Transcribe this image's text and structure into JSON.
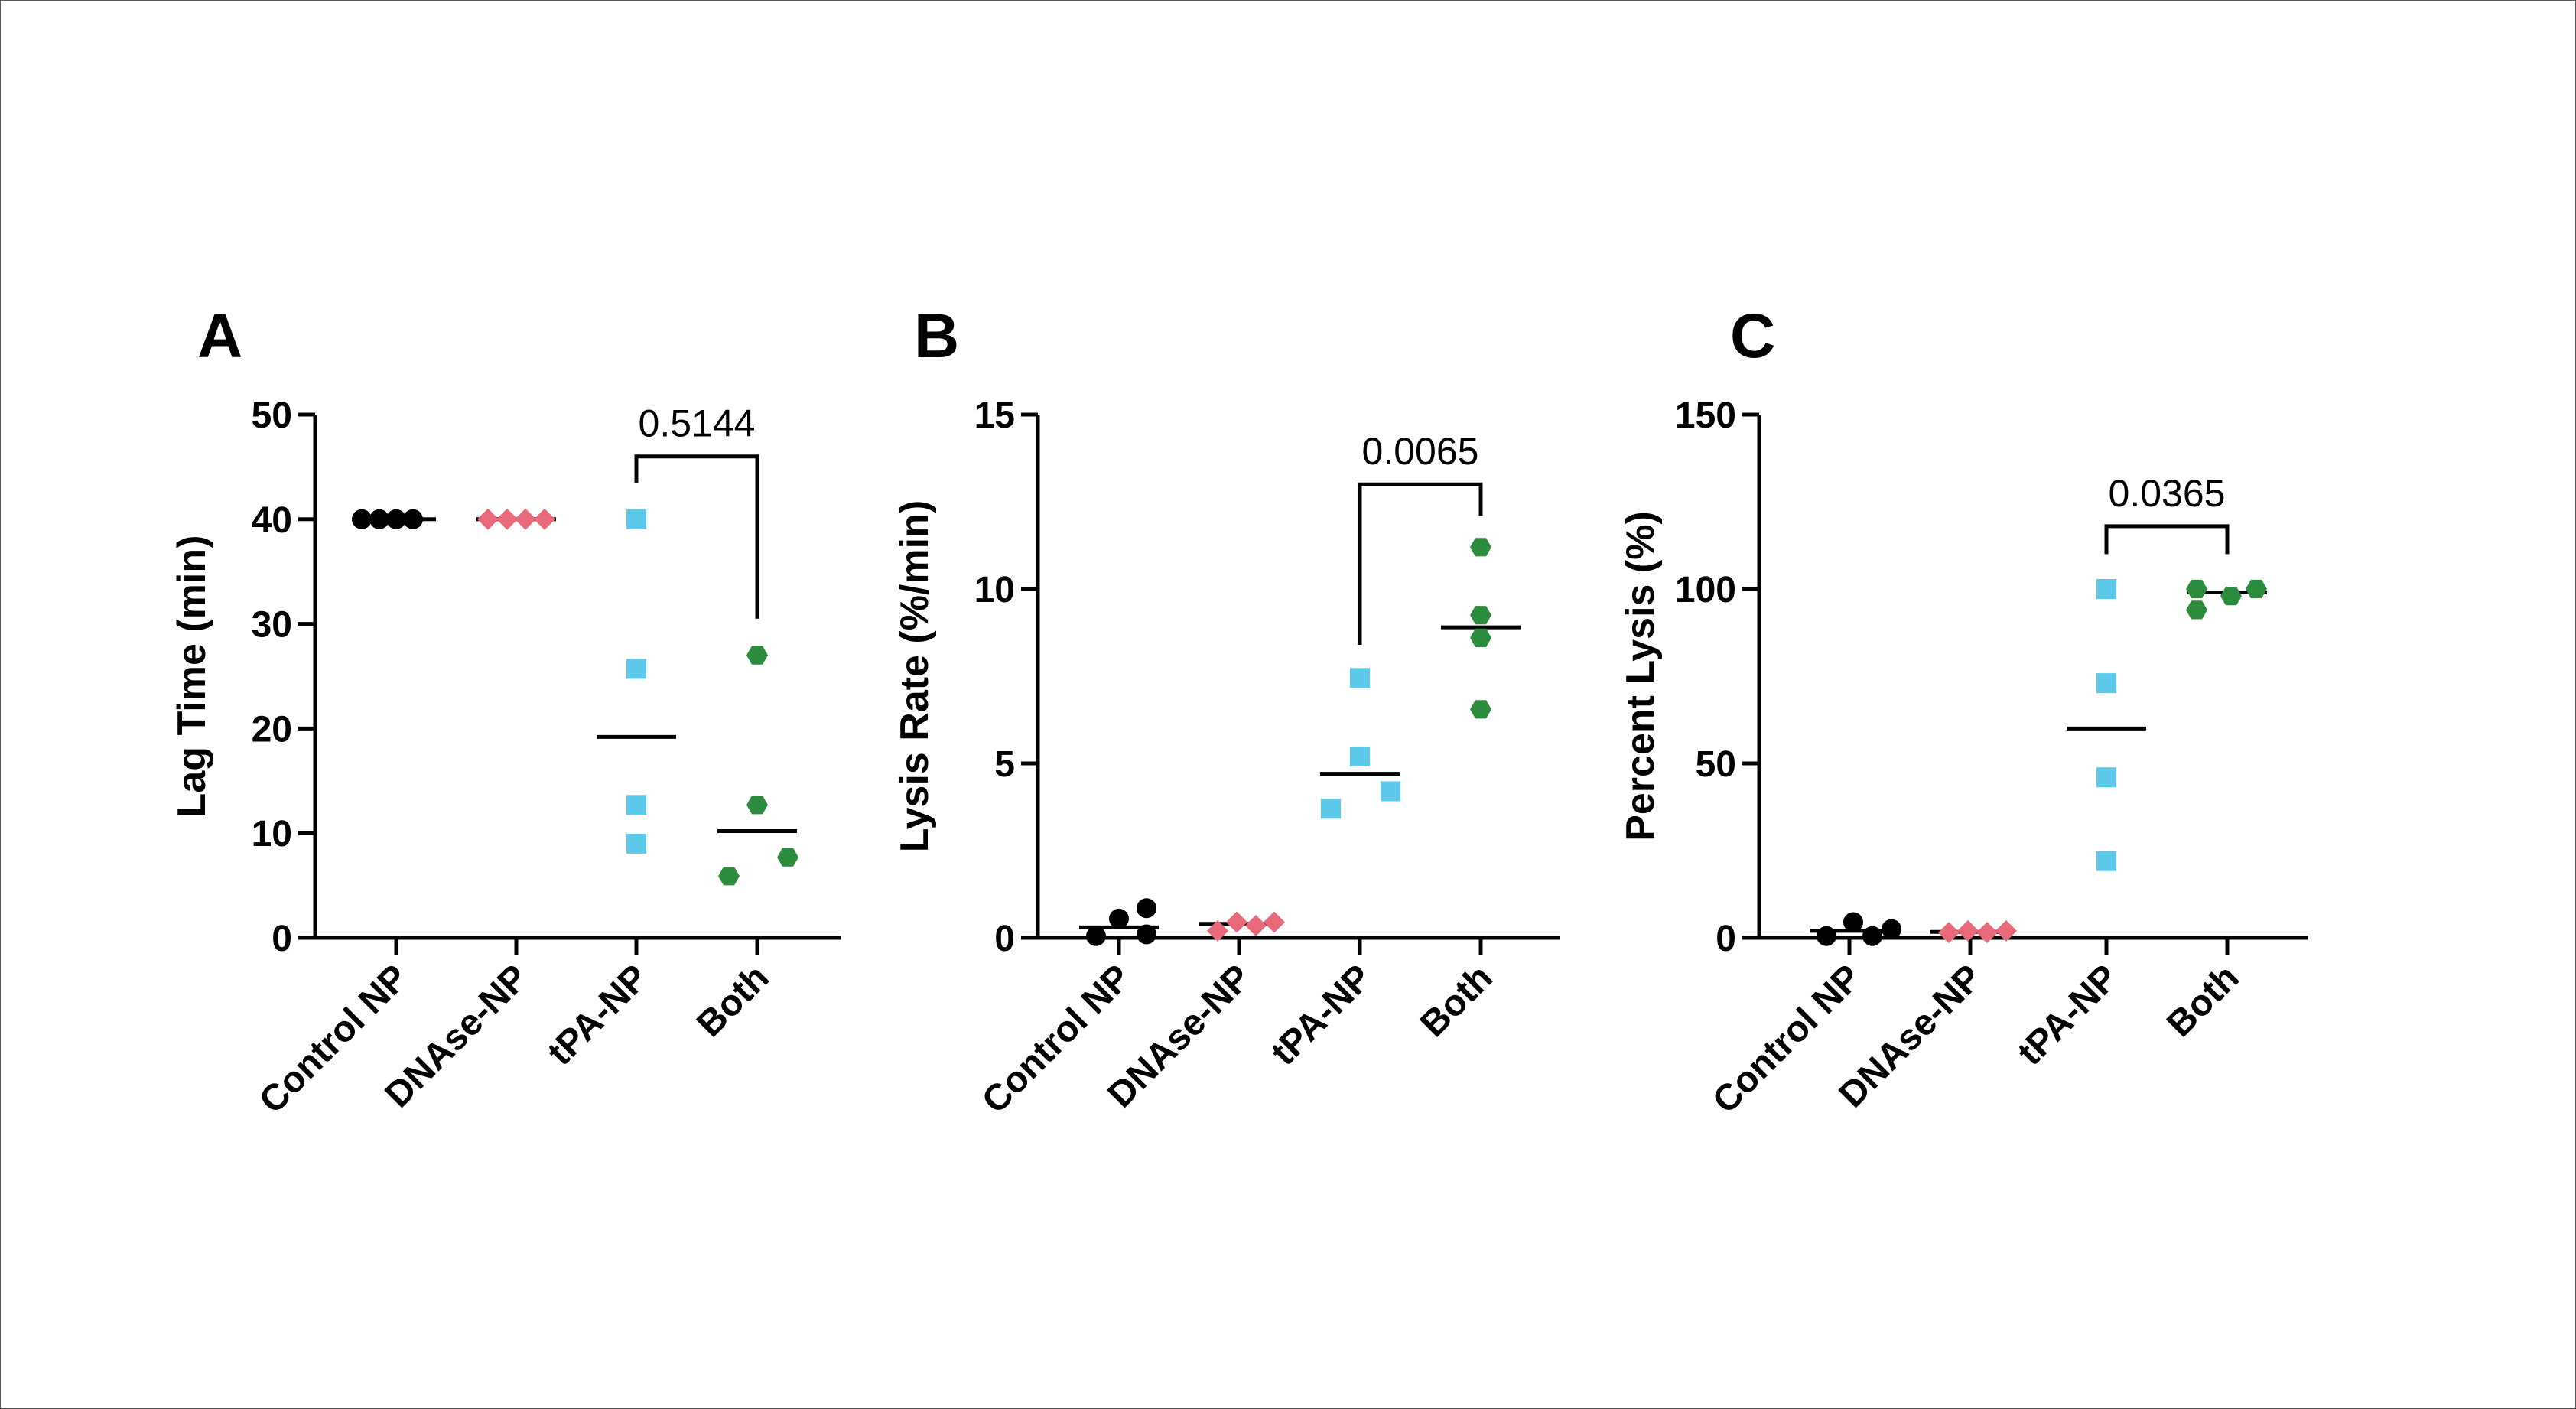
{
  "figure": {
    "background": "#ffffff",
    "border_color": "#555555"
  },
  "colors": {
    "axis": "#000000",
    "Control NP": "#000000",
    "DNAse-NP": "#e8697a",
    "tPA-NP": "#5cc8ea",
    "Both": "#2a8c3c"
  },
  "chart_data": [
    {
      "panel": "A",
      "type": "scatter",
      "ylabel": "Lag Time (min)",
      "xlabel": "",
      "categories": [
        "Control NP",
        "DNAse-NP",
        "tPA-NP",
        "Both"
      ],
      "ylim": [
        0,
        50
      ],
      "yticks": [
        0,
        10,
        20,
        30,
        40,
        50
      ],
      "series": [
        {
          "name": "Control NP",
          "marker": "circle",
          "values": [
            40,
            40,
            40,
            40
          ],
          "mean": 40
        },
        {
          "name": "DNAse-NP",
          "marker": "diamond",
          "values": [
            40,
            40,
            40,
            40
          ],
          "mean": 40
        },
        {
          "name": "tPA-NP",
          "marker": "square",
          "values": [
            40,
            25.7,
            12.7,
            9
          ],
          "mean": 19.2
        },
        {
          "name": "Both",
          "marker": "hexagon",
          "values": [
            27,
            12.7,
            7.7,
            5.9
          ],
          "mean": 10.2
        }
      ],
      "comparison": {
        "groups": [
          "tPA-NP",
          "Both"
        ],
        "p_value": "0.5144",
        "bracket_y": 46,
        "left_end": 43.5,
        "right_end": 30.5
      }
    },
    {
      "panel": "B",
      "type": "scatter",
      "ylabel": "Lysis  Rate (%/min)",
      "xlabel": "",
      "categories": [
        "Control NP",
        "DNAse-NP",
        "tPA-NP",
        "Both"
      ],
      "ylim": [
        0,
        15
      ],
      "yticks": [
        0,
        5,
        10,
        15
      ],
      "series": [
        {
          "name": "Control NP",
          "marker": "circle",
          "values": [
            0.05,
            0.55,
            0.85,
            0.1
          ],
          "mean": 0.3
        },
        {
          "name": "DNAse-NP",
          "marker": "diamond",
          "values": [
            0.2,
            0.45,
            0.35,
            0.45
          ],
          "mean": 0.4
        },
        {
          "name": "tPA-NP",
          "marker": "square",
          "values": [
            7.45,
            5.2,
            4.2,
            3.7
          ],
          "mean": 4.7
        },
        {
          "name": "Both",
          "marker": "hexagon",
          "values": [
            11.2,
            9.25,
            8.6,
            6.55
          ],
          "mean": 8.9
        }
      ],
      "comparison": {
        "groups": [
          "tPA-NP",
          "Both"
        ],
        "p_value": "0.0065",
        "bracket_y": 13,
        "left_end": 8.4,
        "right_end": 12.1
      }
    },
    {
      "panel": "C",
      "type": "scatter",
      "ylabel": "Percent Lysis (%)",
      "xlabel": "",
      "categories": [
        "Control NP",
        "DNAse-NP",
        "tPA-NP",
        "Both"
      ],
      "ylim": [
        0,
        150
      ],
      "yticks": [
        0,
        50,
        100,
        150
      ],
      "series": [
        {
          "name": "Control NP",
          "marker": "circle",
          "values": [
            0.5,
            4.5,
            0.5,
            2.5
          ],
          "mean": 2
        },
        {
          "name": "DNAse-NP",
          "marker": "diamond",
          "values": [
            1.5,
            2,
            1.5,
            2
          ],
          "mean": 1.7
        },
        {
          "name": "tPA-NP",
          "marker": "square",
          "values": [
            100,
            73,
            46,
            22
          ],
          "mean": 60
        },
        {
          "name": "Both",
          "marker": "hexagon",
          "values": [
            100,
            94,
            98,
            100
          ],
          "mean": 99
        }
      ],
      "comparison": {
        "groups": [
          "tPA-NP",
          "Both"
        ],
        "p_value": "0.0365",
        "bracket_y": 118,
        "left_end": 110,
        "right_end": 110
      }
    }
  ]
}
